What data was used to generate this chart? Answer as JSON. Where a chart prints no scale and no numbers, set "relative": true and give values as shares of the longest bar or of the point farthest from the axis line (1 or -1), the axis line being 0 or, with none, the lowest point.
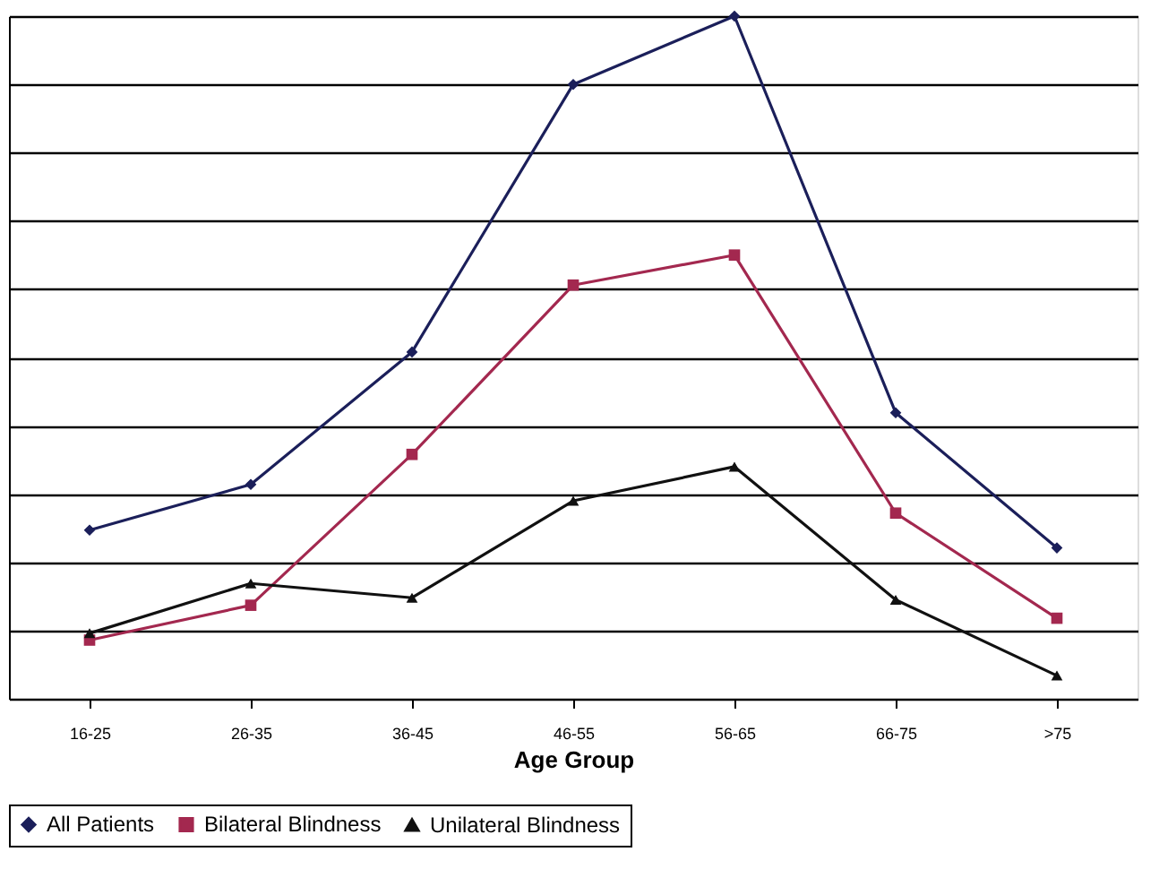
{
  "chart_data": {
    "type": "line",
    "xlabel": "Age Group",
    "relative": true,
    "grid": "y",
    "legend": "bottom",
    "line_style": "solid",
    "categories": [
      "16-25",
      "26-35",
      "36-45",
      "46-55",
      "56-65",
      "66-75",
      ">75"
    ],
    "series": [
      {
        "name": "All Patients",
        "color": "#1b1f5a",
        "marker": "diamond",
        "values": [
          0.247,
          0.314,
          0.508,
          0.9,
          1,
          0.419,
          0.221
        ]
      },
      {
        "name": "Bilateral Blindness",
        "color": "#a3284f",
        "marker": "square",
        "values": [
          0.086,
          0.137,
          0.358,
          0.606,
          0.65,
          0.272,
          0.118
        ]
      },
      {
        "name": "Unilateral Blindness",
        "color": "#111111",
        "marker": "triangle",
        "values": [
          0.096,
          0.169,
          0.148,
          0.29,
          0.34,
          0.145,
          0.034
        ]
      }
    ]
  }
}
